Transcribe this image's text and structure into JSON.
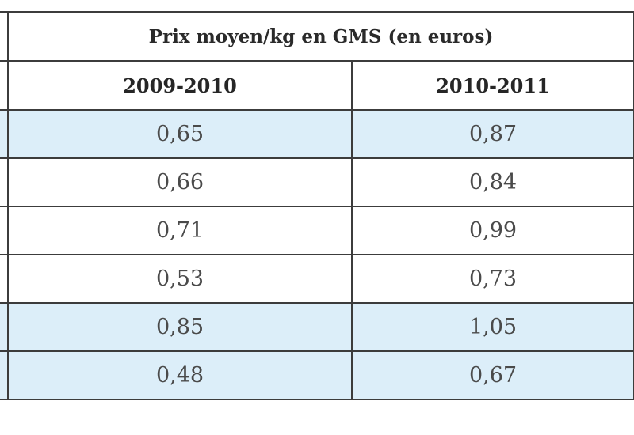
{
  "table": {
    "title": "Prix moyen/kg en GMS (en euros)",
    "columns": [
      "2009-2010",
      "2010-2011"
    ],
    "rows": [
      {
        "values": [
          "0,65",
          "0,87"
        ],
        "shaded": true
      },
      {
        "values": [
          "0,66",
          "0,84"
        ],
        "shaded": false
      },
      {
        "values": [
          "0,71",
          "0,99"
        ],
        "shaded": false
      },
      {
        "values": [
          "0,53",
          "0,73"
        ],
        "shaded": false
      },
      {
        "values": [
          "0,85",
          "1,05"
        ],
        "shaded": true
      },
      {
        "values": [
          "0,48",
          "0,67"
        ],
        "shaded": true
      }
    ],
    "colors": {
      "border": "#3c3c3c",
      "shaded_row": "#dceef9",
      "text": "#4a4a4a"
    }
  }
}
